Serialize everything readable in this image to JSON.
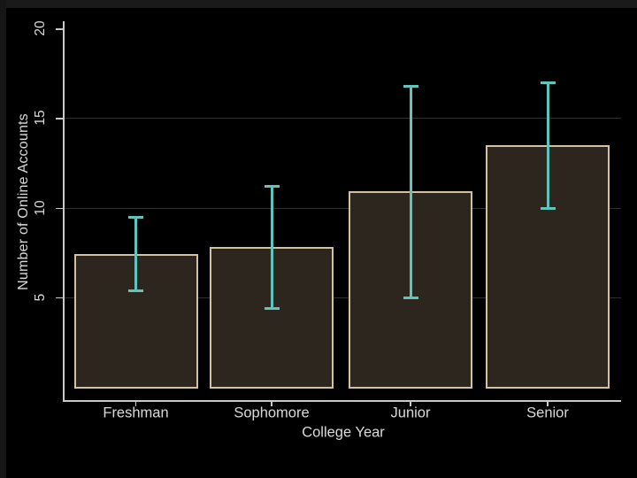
{
  "chart_data": {
    "type": "bar",
    "title": "",
    "xlabel": "College Year",
    "ylabel": "Number of Online Accounts",
    "categories": [
      "Freshman",
      "Sophomore",
      "Junior",
      "Senior"
    ],
    "values": [
      7.4,
      7.8,
      10.9,
      13.5
    ],
    "error_bars": [
      {
        "low": 5.4,
        "high": 9.5
      },
      {
        "low": 4.4,
        "high": 11.2
      },
      {
        "low": 5.0,
        "high": 16.8
      },
      {
        "low": 10.0,
        "high": 17.0
      }
    ],
    "yticks": [
      5,
      10,
      15,
      20
    ],
    "ylim": [
      0,
      20
    ],
    "grid": true,
    "legend": false,
    "colors": {
      "background": "#000000",
      "bar_fill": "#2d261f",
      "bar_border": "#d2c2a2",
      "error_bar": "#5fc4bb",
      "axis_line": "#c9c9c9",
      "grid_line": "#303030",
      "text": "#d9d9d9"
    }
  }
}
